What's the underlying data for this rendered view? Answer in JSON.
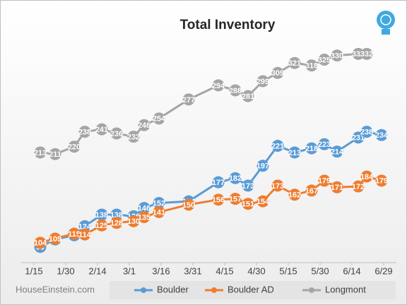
{
  "chart_data": {
    "type": "line",
    "title": "Total Inventory",
    "footer": "HouseEinstein.com",
    "x": [
      3,
      10,
      19,
      24,
      32,
      39,
      47,
      52,
      59,
      73,
      87,
      95,
      101,
      108,
      115,
      123,
      131,
      137,
      143,
      153,
      157,
      164
    ],
    "xlim": [
      -6,
      171
    ],
    "xticks": [
      {
        "value": 0,
        "label": "1/15"
      },
      {
        "value": 15,
        "label": "1/30"
      },
      {
        "value": 30,
        "label": "2/14"
      },
      {
        "value": 45,
        "label": "3/1"
      },
      {
        "value": 60,
        "label": "3/16"
      },
      {
        "value": 75,
        "label": "3/31"
      },
      {
        "value": 90,
        "label": "4/15"
      },
      {
        "value": 105,
        "label": "4/30"
      },
      {
        "value": 120,
        "label": "5/15"
      },
      {
        "value": 135,
        "label": "5/30"
      },
      {
        "value": 150,
        "label": "6/14"
      },
      {
        "value": 165,
        "label": "6/29"
      }
    ],
    "ylim": [
      80,
      380
    ],
    "series": [
      {
        "name": "Boulder",
        "color": "#5b9bd5",
        "values": [
          99,
          108,
          113,
          124,
          138,
          138,
          136,
          146,
          152,
          154,
          177,
          182,
          173,
          197,
          221,
          213,
          218,
          223,
          214,
          231,
          238,
          234
        ]
      },
      {
        "name": "Boulder AD",
        "color": "#ed7d31",
        "values": [
          104,
          109,
          115,
          114,
          125,
          128,
          130,
          135,
          141,
          150,
          156,
          157,
          151,
          154,
          173,
          162,
          167,
          179,
          171,
          172,
          184,
          179
        ]
      },
      {
        "name": "Longmont",
        "color": "#a5a5a5",
        "values": [
          213,
          211,
          220,
          238,
          241,
          236,
          232,
          246,
          254,
          277,
          294,
          288,
          281,
          299,
          309,
          321,
          318,
          325,
          330,
          332,
          332,
          null
        ]
      }
    ]
  }
}
